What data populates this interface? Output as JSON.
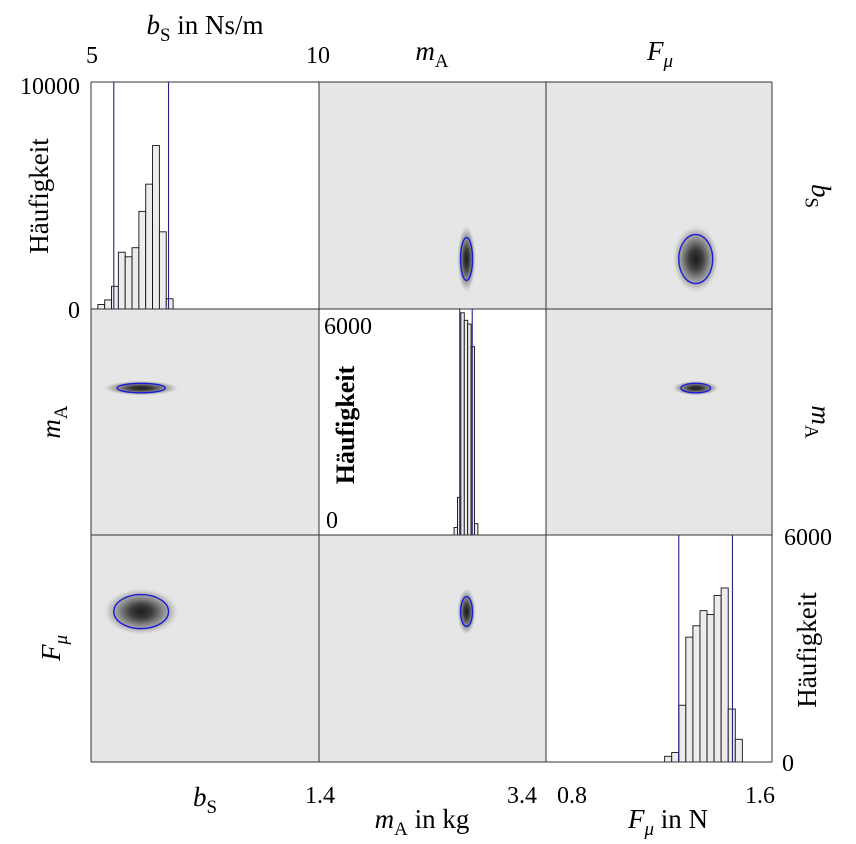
{
  "labels": {
    "top_bs_axis": "b_S in Ns/m",
    "top_ma": "m_A",
    "top_fmu": "F_μ",
    "right_bs": "b_S",
    "right_ma": "m_A",
    "bottom_bs": "b_S",
    "bottom_ma_axis": "m_A in kg",
    "bottom_fmu_axis": "F_μ in N",
    "left_freq": "Häufigkeit",
    "left_ma": "m_A",
    "left_fmu": "F_μ",
    "mid_freq": "Häufigkeit",
    "right_freq": "Häufigkeit"
  },
  "ticks": {
    "bs_min": "5",
    "bs_max": "10",
    "ma_min": "1.4",
    "ma_max": "3.4",
    "fmu_min": "0.8",
    "fmu_max": "1.6",
    "h1_top": "10000",
    "h1_bottom": "0",
    "h2_top": "6000",
    "h2_bottom": "0",
    "h3_top": "6000",
    "h3_bottom": "0"
  },
  "colors": {
    "panel_bg": "#e6e6e6",
    "bar_fill": "#ececec",
    "contour": "#1a1ad8",
    "interval_line": "#22228a",
    "density_core": "#222222"
  },
  "chart_data": {
    "type": "corner_plot",
    "parameters": [
      {
        "symbol": "b_S",
        "unit": "Ns/m",
        "range": [
          5,
          10
        ]
      },
      {
        "symbol": "m_A",
        "unit": "kg",
        "range": [
          1.4,
          3.4
        ]
      },
      {
        "symbol": "F_μ",
        "unit": "N",
        "range": [
          0.8,
          1.6
        ]
      }
    ],
    "histograms": [
      {
        "parameter": "b_S",
        "ylabel": "Häufigkeit",
        "ylim": [
          0,
          10000
        ],
        "bin_edges": [
          5.15,
          5.3,
          5.45,
          5.6,
          5.75,
          5.9,
          6.05,
          6.2,
          6.35,
          6.5,
          6.65,
          6.8
        ],
        "counts": [
          200,
          400,
          1000,
          2500,
          2300,
          2700,
          4300,
          5500,
          7200,
          3400,
          450
        ],
        "interval": [
          5.5,
          6.7
        ]
      },
      {
        "parameter": "m_A",
        "ylabel": "Häufigkeit",
        "ylim": [
          0,
          6000
        ],
        "bin_edges": [
          2.59,
          2.62,
          2.65,
          2.68,
          2.71,
          2.74,
          2.77,
          2.8
        ],
        "counts": [
          200,
          1000,
          5900,
          5700,
          5600,
          5000,
          300
        ],
        "interval": [
          2.64,
          2.75
        ]
      },
      {
        "parameter": "F_μ",
        "ylabel": "Häufigkeit",
        "ylim": [
          0,
          6000
        ],
        "bin_edges": [
          1.22,
          1.245,
          1.27,
          1.295,
          1.32,
          1.345,
          1.37,
          1.395,
          1.42,
          1.445,
          1.47,
          1.495
        ],
        "counts": [
          150,
          250,
          1500,
          3300,
          3600,
          4000,
          3900,
          4400,
          4600,
          1400,
          600
        ],
        "interval": [
          1.27,
          1.46
        ]
      }
    ],
    "joint_densities": [
      {
        "x": "m_A",
        "y": "b_S",
        "center": [
          2.7,
          6.1
        ],
        "spread": [
          0.05,
          0.45
        ],
        "contour_scale": 1.05
      },
      {
        "x": "F_μ",
        "y": "b_S",
        "center": [
          1.33,
          6.1
        ],
        "spread": [
          0.05,
          0.45
        ],
        "contour_scale": 1.2
      },
      {
        "x": "b_S",
        "y": "m_A",
        "center": [
          6.1,
          2.7
        ],
        "spread": [
          0.5,
          0.04
        ],
        "contour_scale": 1.05
      },
      {
        "x": "F_μ",
        "y": "m_A",
        "center": [
          1.33,
          2.7
        ],
        "spread": [
          0.05,
          0.04
        ],
        "contour_scale": 1.05
      },
      {
        "x": "b_S",
        "y": "F_μ",
        "center": [
          6.1,
          1.33
        ],
        "spread": [
          0.5,
          0.05
        ],
        "contour_scale": 1.2
      },
      {
        "x": "m_A",
        "y": "F_μ",
        "center": [
          2.7,
          1.33
        ],
        "spread": [
          0.05,
          0.05
        ],
        "contour_scale": 1.05
      }
    ]
  }
}
